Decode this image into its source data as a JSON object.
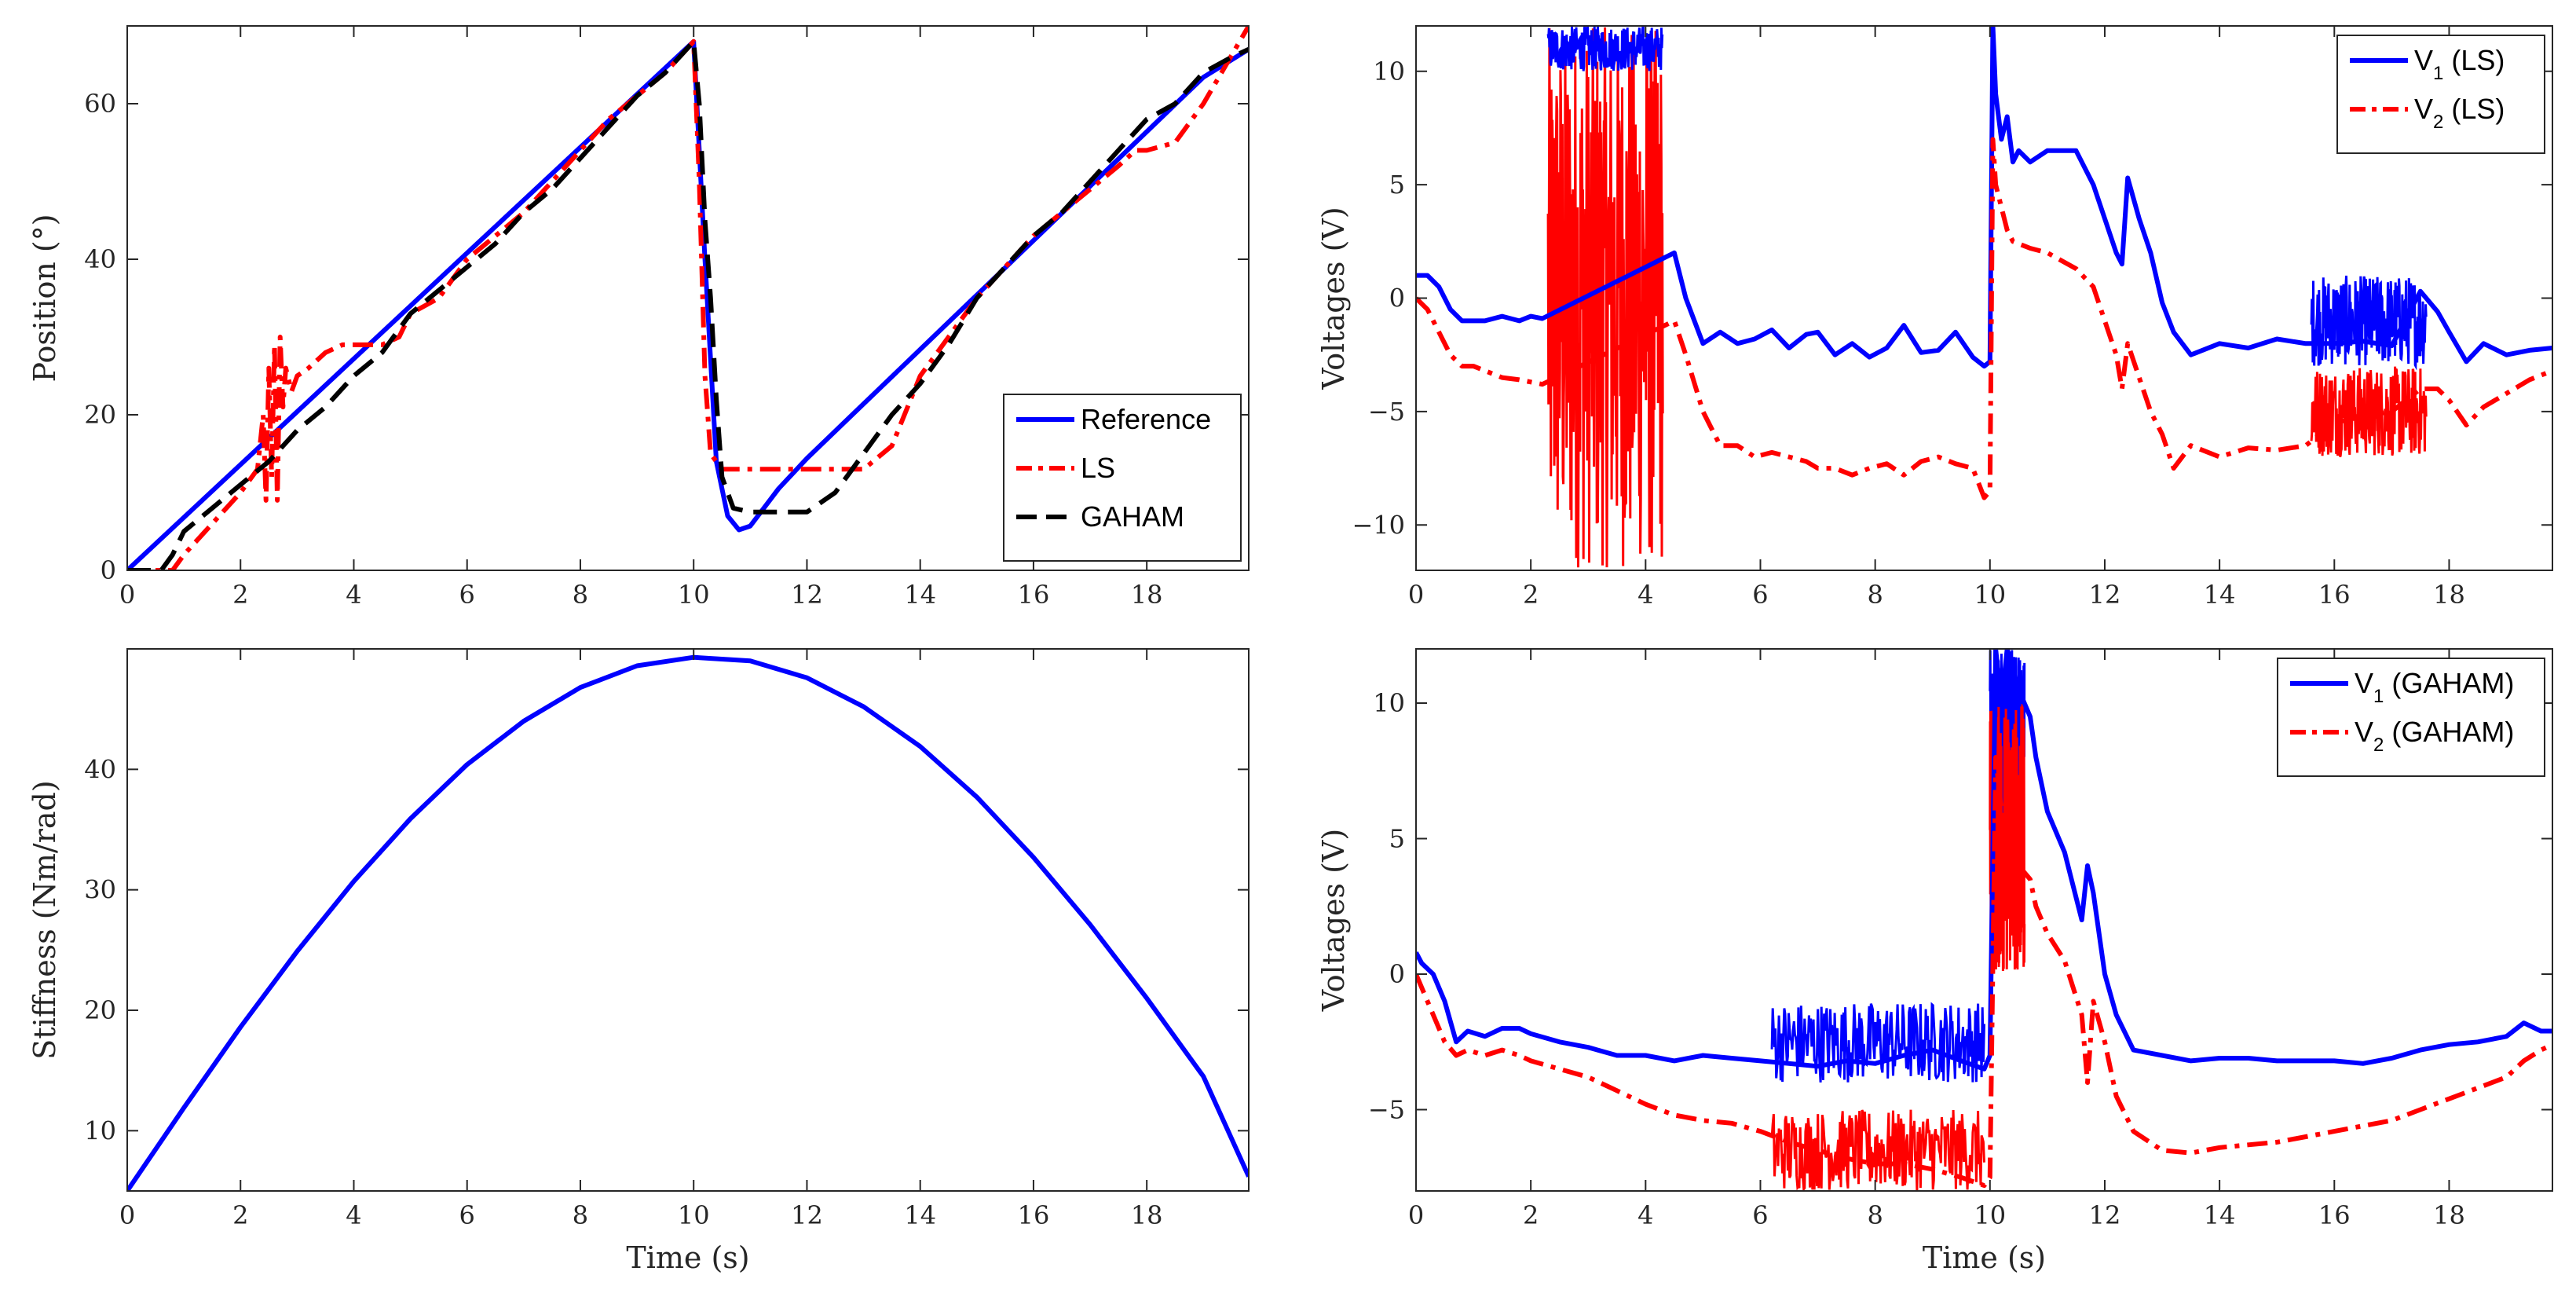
{
  "chart_data": [
    {
      "type": "line",
      "id": "tl",
      "xlabel": "",
      "ylabel": "Position (°)",
      "xlim": [
        0,
        19.8
      ],
      "ylim": [
        0,
        70
      ],
      "xticks": [
        0,
        2,
        4,
        6,
        8,
        10,
        12,
        14,
        16,
        18
      ],
      "yticks": [
        0,
        20,
        40,
        60
      ],
      "legend_position": "bottom-right",
      "series": [
        {
          "name": "Reference",
          "color": "#0000ff",
          "style": "solid",
          "x": [
            0,
            1,
            2,
            3,
            4,
            5,
            6,
            7,
            8,
            9,
            10,
            10.2,
            10.4,
            10.6,
            10.8,
            11,
            11.5,
            12,
            13,
            14,
            15,
            16,
            17,
            18,
            19,
            19.8
          ],
          "y": [
            0,
            6.8,
            13.6,
            20.4,
            27.2,
            34,
            40.8,
            47.6,
            54.4,
            61.2,
            68,
            40,
            14,
            7,
            5.2,
            5.7,
            10.5,
            14.4,
            21.4,
            28.4,
            35.4,
            42.4,
            49.4,
            56.4,
            63.4,
            67
          ]
        },
        {
          "name": "LS",
          "color": "#ff0000",
          "style": "dashdot",
          "x": [
            0,
            0.4,
            0.6,
            0.8,
            1,
            1.5,
            2,
            2.3,
            2.4,
            2.45,
            2.5,
            2.55,
            2.6,
            2.65,
            2.7,
            2.75,
            2.8,
            2.9,
            3,
            3.2,
            3.5,
            3.8,
            4,
            4.5,
            4.8,
            5,
            5.5,
            6,
            6.5,
            7,
            7.5,
            8,
            8.5,
            9,
            9.5,
            10,
            10.1,
            10.2,
            10.3,
            10.5,
            10.7,
            11,
            12,
            12.5,
            13,
            13.5,
            14,
            14.5,
            15,
            15.5,
            16,
            16.5,
            17,
            17.5,
            17.8,
            18,
            18.5,
            19,
            19.8
          ],
          "y": [
            0,
            0,
            0,
            0,
            2,
            6,
            10,
            13,
            20,
            9,
            26,
            12,
            29,
            9,
            30,
            21,
            26,
            23,
            25,
            26,
            28,
            29,
            29,
            29,
            30,
            33,
            35,
            40,
            43,
            46,
            50,
            54,
            58,
            61,
            64,
            68,
            50,
            25,
            15,
            13,
            13,
            13,
            13,
            13,
            13,
            16,
            25,
            30,
            35,
            39,
            43,
            46,
            49,
            52,
            54,
            54,
            55,
            60,
            70
          ]
        },
        {
          "name": "GAHAM",
          "color": "#000000",
          "style": "dashed",
          "x": [
            0,
            0.4,
            0.6,
            0.8,
            1,
            1.5,
            2,
            2.5,
            3,
            3.5,
            4,
            4.5,
            5,
            5.5,
            6,
            6.5,
            7,
            7.5,
            8,
            8.5,
            9,
            9.5,
            10,
            10.1,
            10.2,
            10.3,
            10.4,
            10.5,
            10.7,
            11,
            11.5,
            12,
            12.5,
            13,
            13.5,
            14,
            14.5,
            15,
            15.5,
            16,
            16.5,
            17,
            17.5,
            18,
            18.5,
            19,
            19.5,
            19.8
          ],
          "y": [
            0,
            0,
            0,
            2,
            5,
            8,
            11,
            14,
            18,
            21,
            25,
            28,
            33,
            36,
            39,
            42,
            46,
            49,
            53,
            57,
            61,
            64,
            68,
            60,
            45,
            35,
            22,
            12,
            8,
            7.5,
            7.5,
            7.5,
            10,
            15,
            20,
            24,
            29,
            35,
            39,
            43,
            46,
            50,
            54,
            58,
            60,
            64,
            66,
            67
          ]
        }
      ]
    },
    {
      "type": "line",
      "id": "tr",
      "xlabel": "",
      "ylabel": "Voltages (V)",
      "xlim": [
        0,
        19.8
      ],
      "ylim": [
        -12,
        12
      ],
      "xticks": [
        0,
        2,
        4,
        6,
        8,
        10,
        12,
        14,
        16,
        18
      ],
      "yticks": [
        -10,
        -5,
        0,
        5,
        10
      ],
      "legend_position": "top-right",
      "series": [
        {
          "name": "V",
          "subscript": "1",
          "suffix": " (LS)",
          "color": "#0000ff",
          "style": "solid",
          "x": [
            0,
            0.2,
            0.4,
            0.6,
            0.8,
            1,
            1.2,
            1.5,
            1.8,
            2,
            2.2,
            4.5,
            4.7,
            5,
            5.3,
            5.6,
            5.9,
            6.2,
            6.5,
            6.8,
            7,
            7.3,
            7.6,
            7.9,
            8.2,
            8.5,
            8.8,
            9.1,
            9.4,
            9.7,
            9.9,
            10,
            10.05,
            10.1,
            10.2,
            10.3,
            10.4,
            10.5,
            10.7,
            11,
            11.5,
            11.8,
            12,
            12.2,
            12.3,
            12.4,
            12.6,
            12.8,
            13,
            13.2,
            13.5,
            14,
            14.5,
            15,
            15.5,
            16,
            16.5,
            17,
            17.5,
            17.8,
            18,
            18.3,
            18.6,
            19,
            19.4,
            19.8
          ],
          "y": [
            1,
            1,
            0.5,
            -0.5,
            -1,
            -1,
            -1,
            -0.8,
            -1,
            -0.8,
            -0.9,
            2,
            0,
            -2,
            -1.5,
            -2,
            -1.8,
            -1.4,
            -2.2,
            -1.6,
            -1.5,
            -2.5,
            -2,
            -2.6,
            -2.2,
            -1.2,
            -2.4,
            -2.3,
            -1.5,
            -2.6,
            -3,
            -2.8,
            12,
            9,
            7,
            8,
            6,
            6.5,
            6,
            6.5,
            6.5,
            5,
            3.5,
            2,
            1.5,
            5.3,
            3.5,
            2,
            -0.2,
            -1.5,
            -2.5,
            -2,
            -2.2,
            -1.8,
            -2,
            -2,
            -1.9,
            -2.1,
            0.3,
            -0.6,
            -1.5,
            -2.8,
            -2,
            -2.5,
            -2.3,
            -2.2
          ]
        },
        {
          "name": "V",
          "subscript": "2",
          "suffix": " (LS)",
          "color": "#ff0000",
          "style": "dashdot",
          "x": [
            0,
            0.2,
            0.4,
            0.6,
            0.8,
            1,
            1.2,
            1.5,
            1.8,
            2,
            2.2,
            4.5,
            4.7,
            5,
            5.3,
            5.6,
            5.9,
            6.2,
            6.5,
            6.8,
            7,
            7.3,
            7.6,
            7.9,
            8.2,
            8.5,
            8.8,
            9.1,
            9.4,
            9.7,
            9.9,
            10,
            10.05,
            10.1,
            10.2,
            10.3,
            10.4,
            10.5,
            10.7,
            11,
            11.5,
            11.8,
            12,
            12.2,
            12.3,
            12.4,
            12.6,
            12.8,
            13,
            13.2,
            13.5,
            14,
            14.5,
            15,
            15.5,
            16,
            16.5,
            17,
            17.5,
            17.8,
            18,
            18.3,
            18.6,
            19,
            19.4,
            19.8
          ],
          "y": [
            0,
            -0.5,
            -1.5,
            -2.5,
            -3,
            -3,
            -3.2,
            -3.5,
            -3.6,
            -3.7,
            -3.8,
            -1,
            -2.5,
            -5,
            -6.5,
            -6.5,
            -7,
            -6.8,
            -7,
            -7.2,
            -7.5,
            -7.5,
            -7.8,
            -7.5,
            -7.3,
            -7.8,
            -7.2,
            -7,
            -7.3,
            -7.5,
            -8.8,
            -8.5,
            7,
            5,
            4,
            3,
            2.5,
            2.4,
            2.2,
            2,
            1.3,
            0.5,
            -1,
            -2.5,
            -4,
            -2,
            -3.5,
            -5,
            -6,
            -7.5,
            -6.5,
            -7,
            -6.6,
            -6.7,
            -6.5,
            -5.5,
            -5.2,
            -5,
            -4,
            -4,
            -4.5,
            -5.6,
            -4.8,
            -4.2,
            -3.6,
            -3.2
          ]
        }
      ],
      "noise_bands": [
        {
          "x": [
            2.3,
            4.3
          ],
          "range": [
            -12,
            12
          ],
          "color": "#ff0000"
        },
        {
          "x": [
            2.3,
            4.3
          ],
          "range": [
            10,
            12
          ],
          "color": "#0000ff"
        },
        {
          "x": [
            15.6,
            17.6
          ],
          "range": [
            -3,
            1
          ],
          "color": "#0000ff"
        },
        {
          "x": [
            15.6,
            17.6
          ],
          "range": [
            -7,
            -3
          ],
          "color": "#ff0000"
        }
      ]
    },
    {
      "type": "line",
      "id": "bl",
      "xlabel": "Time (s)",
      "ylabel": "Stiffness (Nm/rad)",
      "xlim": [
        0,
        19.8
      ],
      "ylim": [
        5,
        50
      ],
      "xticks": [
        0,
        2,
        4,
        6,
        8,
        10,
        12,
        14,
        16,
        18
      ],
      "yticks": [
        10,
        20,
        30,
        40
      ],
      "series": [
        {
          "name": "",
          "color": "#0000ff",
          "style": "solid",
          "x": [
            0,
            1,
            2,
            3,
            4,
            5,
            6,
            7,
            8,
            9,
            10,
            11,
            12,
            13,
            14,
            15,
            16,
            17,
            18,
            19,
            19.8
          ],
          "y": [
            5,
            11.9,
            18.6,
            24.9,
            30.7,
            35.9,
            40.4,
            44,
            46.8,
            48.6,
            49.3,
            49,
            47.6,
            45.2,
            41.9,
            37.7,
            32.7,
            27.1,
            21,
            14.5,
            6.2
          ]
        }
      ]
    },
    {
      "type": "line",
      "id": "br",
      "xlabel": "Time (s)",
      "ylabel": "Voltages (V)",
      "xlim": [
        0,
        19.8
      ],
      "ylim": [
        -8,
        12
      ],
      "xticks": [
        0,
        2,
        4,
        6,
        8,
        10,
        12,
        14,
        16,
        18
      ],
      "yticks": [
        -5,
        0,
        5,
        10
      ],
      "legend_position": "top-right",
      "series": [
        {
          "name": "V",
          "subscript": "1",
          "suffix": " (GAHAM)",
          "color": "#0000ff",
          "style": "solid",
          "x": [
            0,
            0.1,
            0.3,
            0.5,
            0.7,
            0.9,
            1.2,
            1.5,
            1.8,
            2,
            2.5,
            3,
            3.5,
            4,
            4.5,
            5,
            5.5,
            6,
            6.5,
            7,
            7.5,
            8,
            8.5,
            9,
            9.5,
            9.9,
            10,
            10.1,
            10.2,
            10.3,
            10.5,
            10.7,
            10.8,
            11,
            11.3,
            11.6,
            11.7,
            11.8,
            12,
            12.2,
            12.5,
            13,
            13.5,
            14,
            14.5,
            15,
            15.5,
            16,
            16.5,
            17,
            17.5,
            18,
            18.5,
            19,
            19.3,
            19.6,
            19.8
          ],
          "y": [
            0.8,
            0.4,
            0,
            -1,
            -2.5,
            -2.1,
            -2.3,
            -2,
            -2,
            -2.2,
            -2.5,
            -2.7,
            -3,
            -3,
            -3.2,
            -3,
            -3.1,
            -3.2,
            -3.3,
            -3.4,
            -3.2,
            -3.3,
            -3,
            -2.8,
            -3.2,
            -3.5,
            -3,
            12,
            10,
            12,
            10.5,
            9.5,
            8,
            6,
            4.5,
            2,
            4,
            3,
            0,
            -1.5,
            -2.8,
            -3,
            -3.2,
            -3.1,
            -3.1,
            -3.2,
            -3.2,
            -3.2,
            -3.3,
            -3.1,
            -2.8,
            -2.6,
            -2.5,
            -2.3,
            -1.8,
            -2.1,
            -2.1
          ]
        },
        {
          "name": "V",
          "subscript": "2",
          "suffix": " (GAHAM)",
          "color": "#ff0000",
          "style": "dashdot",
          "x": [
            0,
            0.1,
            0.3,
            0.5,
            0.7,
            0.9,
            1.2,
            1.5,
            1.8,
            2,
            2.5,
            3,
            3.5,
            4,
            4.5,
            5,
            5.5,
            6,
            6.5,
            7,
            7.5,
            8,
            8.5,
            9,
            9.5,
            9.9,
            10,
            10.1,
            10.2,
            10.3,
            10.5,
            10.7,
            10.8,
            11,
            11.3,
            11.6,
            11.7,
            11.8,
            12,
            12.2,
            12.5,
            13,
            13.5,
            14,
            14.5,
            15,
            15.5,
            16,
            16.5,
            17,
            17.5,
            18,
            18.5,
            19,
            19.3,
            19.6,
            19.8
          ],
          "y": [
            0,
            -0.5,
            -1.5,
            -2.5,
            -3,
            -2.8,
            -3,
            -2.8,
            -3,
            -3.2,
            -3.5,
            -3.8,
            -4.3,
            -4.8,
            -5.2,
            -5.4,
            -5.5,
            -5.8,
            -6.2,
            -6.5,
            -6.8,
            -7,
            -7,
            -7.2,
            -7.5,
            -7.8,
            -7.5,
            8,
            6,
            5,
            4,
            3.5,
            2.5,
            1.5,
            0.5,
            -1.5,
            -4,
            -1,
            -2.5,
            -4.5,
            -5.8,
            -6.5,
            -6.6,
            -6.4,
            -6.3,
            -6.2,
            -6,
            -5.8,
            -5.6,
            -5.4,
            -5,
            -4.6,
            -4.2,
            -3.8,
            -3.2,
            -2.8,
            -2.6
          ]
        }
      ],
      "noise_bands": [
        {
          "x": [
            6.2,
            9.9
          ],
          "range": [
            -4,
            -1
          ],
          "color": "#0000ff"
        },
        {
          "x": [
            6.2,
            9.9
          ],
          "range": [
            -8,
            -5
          ],
          "color": "#ff0000"
        },
        {
          "x": [
            10,
            10.6
          ],
          "range": [
            3,
            12
          ],
          "color": "#0000ff"
        },
        {
          "x": [
            10,
            10.6
          ],
          "range": [
            0,
            10
          ],
          "color": "#ff0000"
        }
      ]
    }
  ]
}
